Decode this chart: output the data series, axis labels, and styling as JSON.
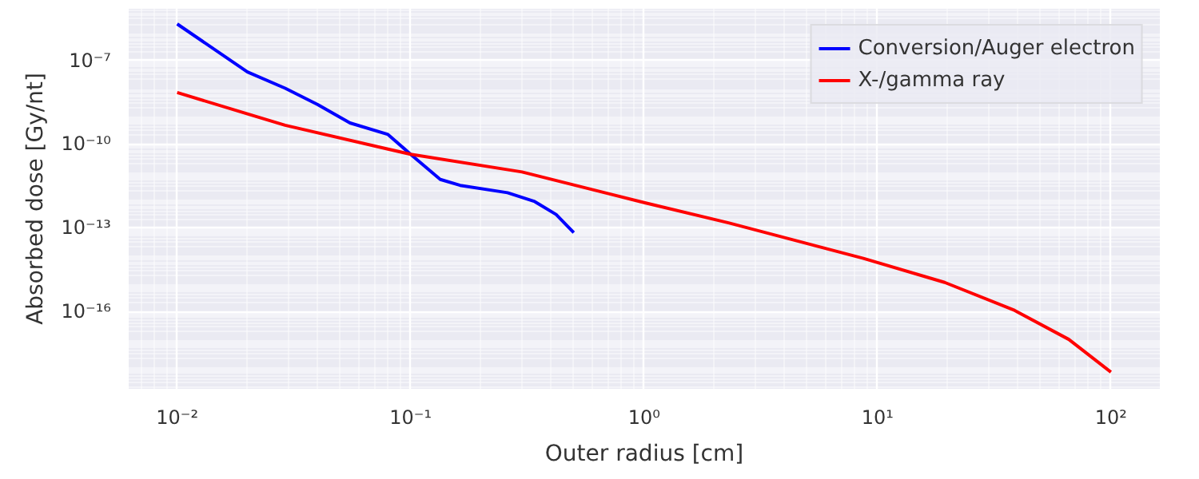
{
  "chart_data": {
    "type": "line",
    "xlabel": "Outer radius [cm]",
    "ylabel": "Absorbed dose [Gy/nt]",
    "log": "xy",
    "grid": true,
    "legend": "top right",
    "marker": "none",
    "line_style": "solid",
    "xlim": [
      0.0062,
      162
    ],
    "ylim": [
      1.7e-19,
      7e-06
    ],
    "xticks": [
      {
        "value": 0.01,
        "label": "10⁻²"
      },
      {
        "value": 0.1,
        "label": "10⁻¹"
      },
      {
        "value": 1,
        "label": "10⁰"
      },
      {
        "value": 10,
        "label": "10¹"
      },
      {
        "value": 100,
        "label": "10²"
      }
    ],
    "yticks": [
      {
        "value": 1e-07,
        "label": "10⁻⁷"
      },
      {
        "value": 1e-10,
        "label": "10⁻¹⁰"
      },
      {
        "value": 1e-13,
        "label": "10⁻¹³"
      },
      {
        "value": 1e-16,
        "label": "10⁻¹⁶"
      }
    ],
    "series": [
      {
        "name": "Conversion/Auger electron",
        "color": "#0000ff",
        "x": [
          0.01,
          0.02,
          0.029,
          0.04,
          0.055,
          0.08,
          0.1,
          0.134,
          0.163,
          0.26,
          0.34,
          0.42,
          0.5
        ],
        "values": [
          2e-06,
          3.8e-08,
          1e-08,
          2.6e-09,
          5.7e-10,
          2.2e-10,
          4.3e-11,
          5.4e-12,
          3.3e-12,
          1.8e-12,
          8.7e-13,
          3e-13,
          6.7e-14
        ]
      },
      {
        "name": "X-/gamma ray",
        "color": "#ff0000",
        "x": [
          0.01,
          0.02,
          0.029,
          0.08,
          0.1,
          0.3,
          1,
          2.3,
          8.7,
          19.4,
          38.6,
          66,
          100
        ],
        "values": [
          7e-09,
          1.2e-09,
          4.7e-10,
          6.6e-11,
          4.3e-11,
          1e-11,
          8e-13,
          1.5e-13,
          8e-15,
          1.1e-15,
          1.1e-16,
          1e-17,
          6.7e-19
        ]
      }
    ]
  }
}
